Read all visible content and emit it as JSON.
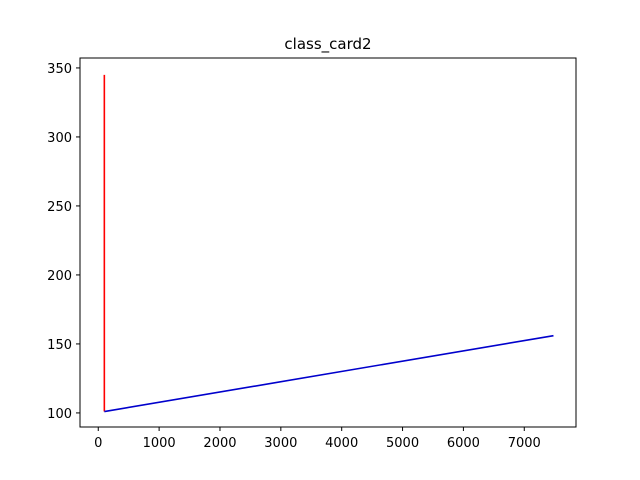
{
  "chart_data": {
    "type": "line",
    "title": "class_card2",
    "xlabel": "",
    "ylabel": "",
    "xlim": [
      -300,
      7850
    ],
    "ylim": [
      89.8,
      357.2
    ],
    "x_ticks": [
      0,
      1000,
      2000,
      3000,
      4000,
      5000,
      6000,
      7000
    ],
    "y_ticks": [
      100,
      150,
      200,
      250,
      300,
      350
    ],
    "grid": false,
    "legend": "none",
    "series": [
      {
        "color": "#ff0000",
        "x": [
          100,
          100
        ],
        "y": [
          345,
          101
        ]
      },
      {
        "color": "#0000cc",
        "x": [
          100,
          7480
        ],
        "y": [
          101,
          156
        ]
      }
    ]
  }
}
